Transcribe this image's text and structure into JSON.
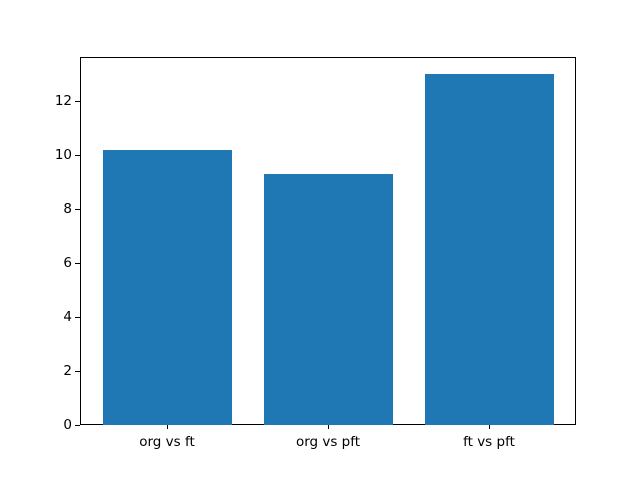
{
  "chart_data": {
    "type": "bar",
    "categories": [
      "org vs ft",
      "org vs pft",
      "ft vs pft"
    ],
    "values": [
      10.2,
      9.3,
      13.0
    ],
    "yticks": [
      0,
      2,
      4,
      6,
      8,
      10,
      12
    ],
    "ytick_labels": [
      "0",
      "2",
      "4",
      "6",
      "8",
      "10",
      "12"
    ],
    "ylim": [
      0,
      13.63
    ],
    "xlim": [
      -0.54,
      2.54
    ],
    "bar_width": 0.8,
    "bar_color": "#1f77b4",
    "spine_color": "#000000",
    "text_color": "#000000",
    "background_color": "#ffffff",
    "grid": false,
    "legend_position": "none"
  }
}
